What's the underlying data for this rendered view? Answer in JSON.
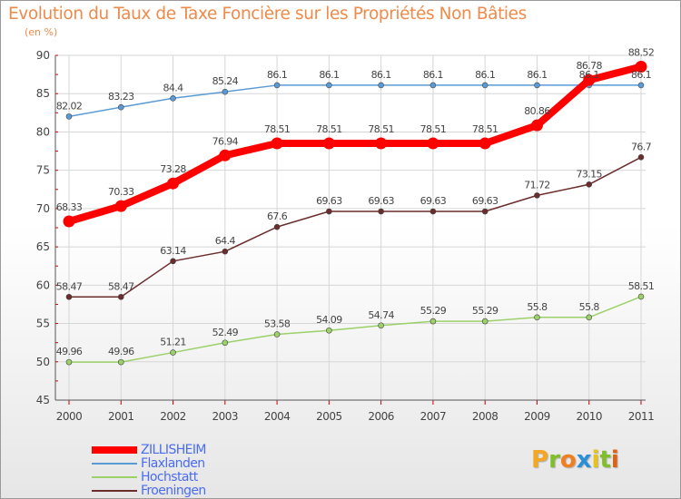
{
  "header": {
    "title": "Evolution du Taux de Taxe Foncière sur les Propriétés Non Bâties",
    "unit": "(en %)"
  },
  "logo": {
    "letters": [
      "P",
      "r",
      "o",
      "x",
      "i",
      "t",
      "i"
    ],
    "colors": [
      "#f5a623",
      "#7fbf2a",
      "#f07f1e",
      "#2a8fd8",
      "#e8c21a",
      "#7fbf2a",
      "#e06010"
    ]
  },
  "chart_data": {
    "type": "line",
    "title": "Evolution du Taux de Taxe Foncière sur les Propriétés Non Bâties",
    "ylabel": "(en %)",
    "xlabel": "",
    "x": [
      "2000",
      "2001",
      "2002",
      "2003",
      "2004",
      "2005",
      "2006",
      "2007",
      "2008",
      "2009",
      "2010",
      "2011"
    ],
    "ylim": [
      45,
      90
    ],
    "yticks": [
      45,
      50,
      55,
      60,
      65,
      70,
      75,
      80,
      85,
      90
    ],
    "grid": true,
    "legend_position": "bottom-left",
    "series": [
      {
        "name": "Flaxlanden",
        "color": "#5b9bd5",
        "values": [
          82.02,
          83.23,
          84.4,
          85.24,
          86.1,
          86.1,
          86.1,
          86.1,
          86.1,
          86.1,
          86.1,
          86.1
        ],
        "labels": [
          "82.02",
          "83.23",
          "84.4",
          "85.24",
          "86.1",
          "86.1",
          "86.1",
          "86.1",
          "86.1",
          "86.1",
          "86.1",
          "86.1"
        ]
      },
      {
        "name": "Hochstatt",
        "color": "#9bd06a",
        "values": [
          49.96,
          49.96,
          51.21,
          52.49,
          53.58,
          54.09,
          54.74,
          55.29,
          55.29,
          55.8,
          55.8,
          58.51
        ],
        "labels": [
          "49.96",
          "49.96",
          "51.21",
          "52.49",
          "53.58",
          "54.09",
          "54.74",
          "55.29",
          "55.29",
          "55.8",
          "55.8",
          "58.51"
        ]
      },
      {
        "name": "Froeningen",
        "color": "#6b2c2c",
        "values": [
          58.47,
          58.47,
          63.14,
          64.4,
          67.6,
          69.63,
          69.63,
          69.63,
          69.63,
          71.72,
          73.15,
          76.7
        ],
        "labels": [
          "58.47",
          "58.47",
          "63.14",
          "64.4",
          "67.6",
          "69.63",
          "69.63",
          "69.63",
          "69.63",
          "71.72",
          "73.15",
          "76.7"
        ]
      },
      {
        "name": "ZILLISHEIM",
        "color": "#ff0000",
        "values": [
          68.33,
          70.33,
          73.28,
          76.94,
          78.51,
          78.51,
          78.51,
          78.51,
          78.51,
          80.86,
          86.78,
          88.52
        ],
        "labels": [
          "68.33",
          "70.33",
          "73.28",
          "76.94",
          "78.51",
          "78.51",
          "78.51",
          "78.51",
          "78.51",
          "80.86",
          "86.78",
          "88.52"
        ]
      }
    ],
    "legend": [
      {
        "name": "ZILLISHEIM",
        "color": "#ff0000",
        "label_color": "#4a6cf0"
      },
      {
        "name": "Flaxlanden",
        "color": "#5b9bd5",
        "label_color": "#4a6cf0"
      },
      {
        "name": "Hochstatt",
        "color": "#9bd06a",
        "label_color": "#4a6cf0"
      },
      {
        "name": "Froeningen",
        "color": "#6b2c2c",
        "label_color": "#4a6cf0"
      }
    ]
  }
}
